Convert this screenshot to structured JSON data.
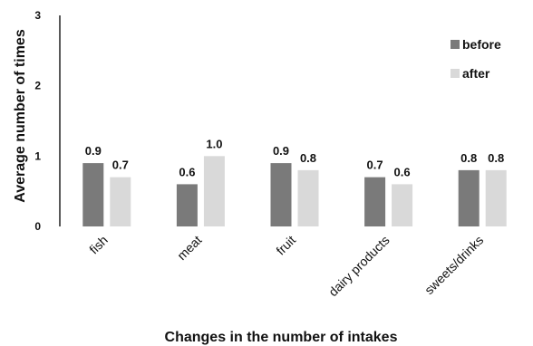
{
  "chart_data": {
    "type": "bar",
    "xlabel": "Changes in the number of intakes",
    "ylabel": "Average number of times",
    "ylim": [
      0,
      3
    ],
    "yticks": [
      0,
      1,
      2,
      3
    ],
    "grid": false,
    "legend_position": "top-right",
    "categories": [
      "fish",
      "meat",
      "fruit",
      "dairy products",
      "sweets/drinks"
    ],
    "series": [
      {
        "name": "before",
        "color": "#7a7a7a",
        "values": [
          0.9,
          0.6,
          0.9,
          0.7,
          0.8
        ],
        "labels": [
          "0.9",
          "0.6",
          "0.9",
          "0.7",
          "0.8"
        ]
      },
      {
        "name": "after",
        "color": "#d9d9d9",
        "values": [
          0.7,
          1.0,
          0.8,
          0.6,
          0.8
        ],
        "labels": [
          "0.7",
          "1.0",
          "0.8",
          "0.6",
          "0.8"
        ]
      }
    ]
  }
}
